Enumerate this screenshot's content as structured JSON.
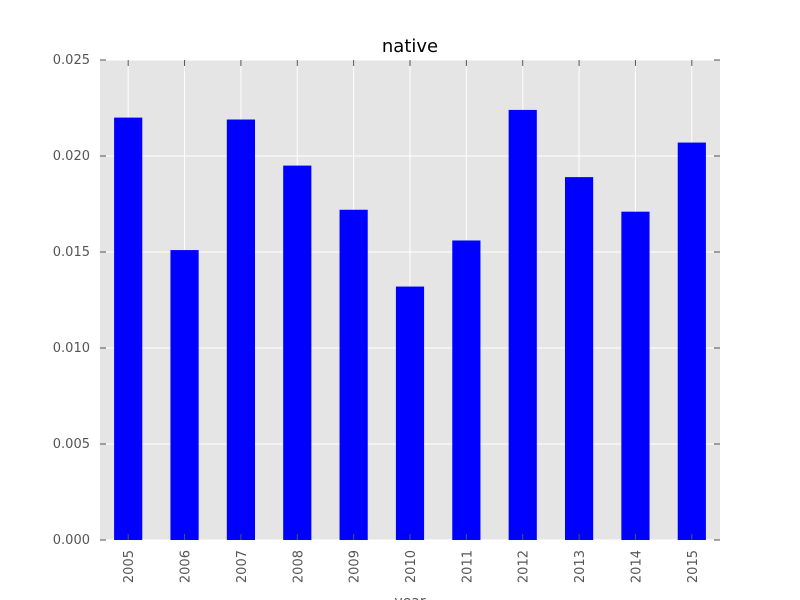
{
  "chart_data": {
    "type": "bar",
    "title": "native",
    "xlabel": "year",
    "ylabel": "",
    "categories": [
      "2005",
      "2006",
      "2007",
      "2008",
      "2009",
      "2010",
      "2011",
      "2012",
      "2013",
      "2014",
      "2015"
    ],
    "values": [
      0.022,
      0.0151,
      0.0219,
      0.0195,
      0.0172,
      0.0132,
      0.0156,
      0.0224,
      0.0189,
      0.0171,
      0.0207
    ],
    "ylim": [
      0,
      0.025
    ],
    "yticks": [
      "0.000",
      "0.005",
      "0.010",
      "0.015",
      "0.020",
      "0.025"
    ],
    "grid": true,
    "bar_color": "#0000ff",
    "plot_background": "#e5e5e5",
    "grid_color": "#ffffff"
  }
}
